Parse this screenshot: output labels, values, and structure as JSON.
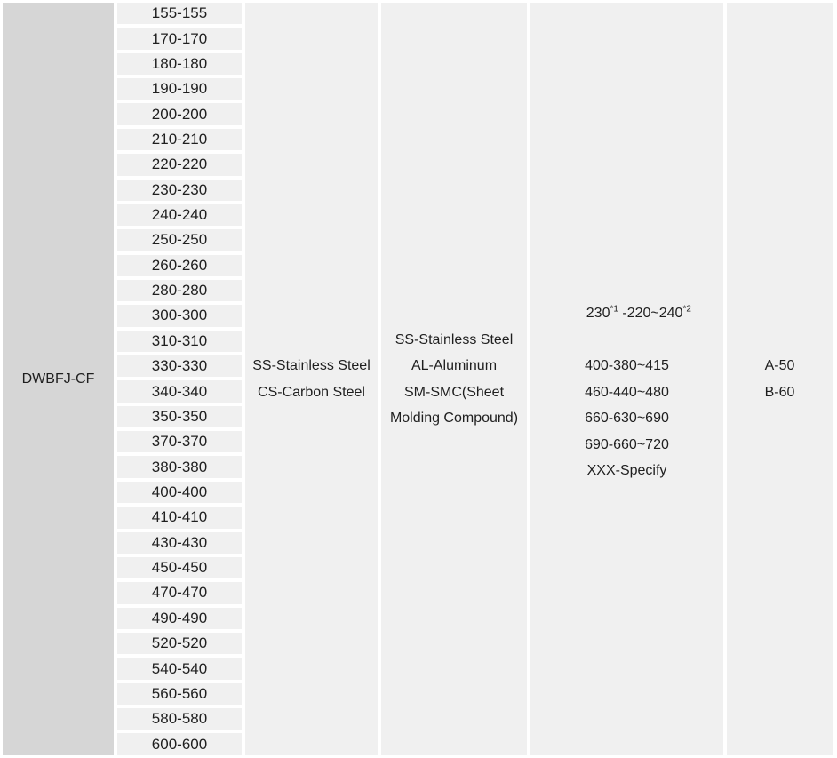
{
  "colors": {
    "page_bg": "#ffffff",
    "model_col_bg": "#d6d6d6",
    "cell_bg": "#f0f0f0",
    "text": "#1f1f1f"
  },
  "table": {
    "model_label": "DWBFJ-CF",
    "sizes": [
      "155-155",
      "170-170",
      "180-180",
      "190-190",
      "200-200",
      "210-210",
      "220-220",
      "230-230",
      "240-240",
      "250-250",
      "260-260",
      "280-280",
      "300-300",
      "310-310",
      "330-330",
      "340-340",
      "350-350",
      "370-370",
      "380-380",
      "400-400",
      "410-410",
      "430-430",
      "450-450",
      "470-470",
      "490-490",
      "520-520",
      "540-540",
      "560-560",
      "580-580",
      "600-600"
    ],
    "frame_material_lines": [
      "SS-Stainless Steel",
      "CS-Carbon Steel"
    ],
    "blade_material_lines": [
      "SS-Stainless Steel",
      "AL-Aluminum",
      "SM-SMC(Sheet",
      "Molding Compound)"
    ],
    "voltage_line_230": {
      "base1": "230",
      "sup1": "*1",
      "base2": " -220~240",
      "sup2": "*2"
    },
    "voltage_lines": [
      "400-380~415",
      "460-440~480",
      "660-630~690",
      "690-660~720",
      "XXX-Specify"
    ],
    "frequency_lines": [
      "A-50",
      "B-60"
    ]
  }
}
